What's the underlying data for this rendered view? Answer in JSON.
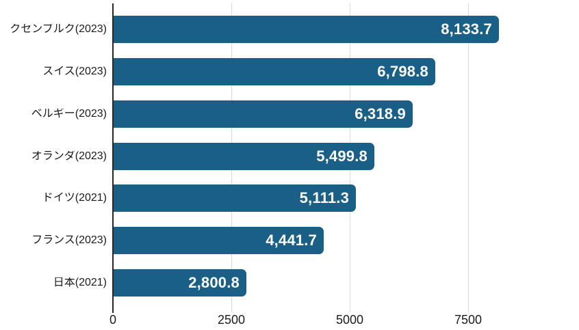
{
  "chart_data": {
    "type": "bar",
    "orientation": "horizontal",
    "title": "",
    "xlabel": "",
    "ylabel": "",
    "categories": [
      "クセンブルク(2023)",
      "スイス(2023)",
      "ベルギー(2023)",
      "オランダ(2023)",
      "ドイツ(2021)",
      "フランス(2023)",
      "日本(2021)"
    ],
    "values": [
      8133.7,
      6798.8,
      6318.9,
      5499.8,
      5111.3,
      4441.7,
      2800.8
    ],
    "value_labels": [
      "8,133.7",
      "6,798.8",
      "6,318.9",
      "5,499.8",
      "5,111.3",
      "4,441.7",
      "2,800.8"
    ],
    "x_tick_labels": [
      "0",
      "2500",
      "5000",
      "7500"
    ],
    "x_tick_values": [
      0,
      2500,
      5000,
      7500
    ],
    "xlim": [
      0,
      9840
    ],
    "grid": true,
    "legend": "none",
    "colors": {
      "bar": "#1a5f86",
      "value_text": "#ffffff",
      "label_text": "#1a1a1a",
      "tick_text": "#1a1a1a",
      "gridline": "#d9d9d9",
      "axis_line": "#262626",
      "background": "#ffffff"
    }
  }
}
